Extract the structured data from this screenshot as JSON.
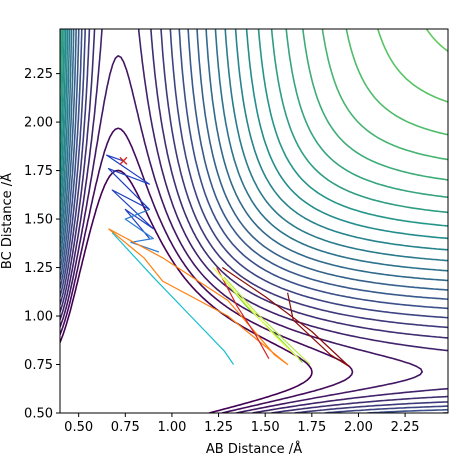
{
  "chart_data": {
    "type": "contour",
    "title": "",
    "xlabel": "AB Distance /Å",
    "ylabel": "BC Distance /Å",
    "xlim": [
      0.4,
      2.48
    ],
    "ylim": [
      0.5,
      2.48
    ],
    "xticks": [
      "0.50",
      "0.75",
      "1.00",
      "1.25",
      "1.50",
      "1.75",
      "2.00",
      "2.25"
    ],
    "yticks": [
      "0.50",
      "0.75",
      "1.00",
      "1.25",
      "1.50",
      "1.75",
      "2.00",
      "2.25"
    ],
    "grid": false,
    "colormap": [
      "#440154",
      "#3b528b",
      "#21918c",
      "#5ec962",
      "#fde725"
    ],
    "start_marker": {
      "x": 0.74,
      "y": 1.8,
      "symbol": "x",
      "color": "#d62728"
    },
    "series": [
      {
        "color": "#1f3fbf",
        "points": [
          [
            0.74,
            1.8
          ],
          [
            0.65,
            1.83
          ],
          [
            0.88,
            1.68
          ],
          [
            0.66,
            1.76
          ],
          [
            0.88,
            1.55
          ],
          [
            0.68,
            1.65
          ],
          [
            0.9,
            1.45
          ],
          [
            0.75,
            1.55
          ],
          [
            0.88,
            1.4
          ]
        ]
      },
      {
        "color": "#2b7bd6",
        "points": [
          [
            0.88,
            1.55
          ],
          [
            0.75,
            1.5
          ],
          [
            0.9,
            1.4
          ],
          [
            0.78,
            1.38
          ],
          [
            0.93,
            1.33
          ]
        ]
      },
      {
        "color": "#ff7f0e",
        "points": [
          [
            0.66,
            1.45
          ],
          [
            0.95,
            1.3
          ],
          [
            1.3,
            1.08
          ],
          [
            1.55,
            0.8
          ],
          [
            1.62,
            0.75
          ],
          [
            1.3,
            1.0
          ],
          [
            0.95,
            1.18
          ],
          [
            0.85,
            1.3
          ],
          [
            0.66,
            1.45
          ]
        ]
      },
      {
        "color": "#17becf",
        "points": [
          [
            0.68,
            1.43
          ],
          [
            0.9,
            1.2
          ],
          [
            1.1,
            1.0
          ],
          [
            1.28,
            0.82
          ],
          [
            1.33,
            0.75
          ]
        ]
      },
      {
        "color": "#d62728",
        "points": [
          [
            1.24,
            1.25
          ],
          [
            1.35,
            1.05
          ],
          [
            1.45,
            0.9
          ],
          [
            1.52,
            0.78
          ]
        ]
      },
      {
        "color": "#8c0a0a",
        "points": [
          [
            1.27,
            1.25
          ],
          [
            1.5,
            1.1
          ],
          [
            1.75,
            0.92
          ],
          [
            1.95,
            0.74
          ],
          [
            1.85,
            0.8
          ],
          [
            1.65,
            0.98
          ],
          [
            1.62,
            1.12
          ]
        ]
      },
      {
        "color": "#7fd63a",
        "points": [
          [
            1.25,
            1.22
          ],
          [
            1.4,
            1.05
          ],
          [
            1.58,
            0.88
          ],
          [
            1.7,
            0.76
          ]
        ]
      },
      {
        "color": "#b8e84b",
        "points": [
          [
            1.28,
            1.2
          ],
          [
            1.45,
            1.02
          ],
          [
            1.62,
            0.86
          ],
          [
            1.74,
            0.75
          ]
        ]
      },
      {
        "color": "#e6ff4d",
        "points": [
          [
            1.22,
            1.25
          ],
          [
            1.38,
            1.08
          ],
          [
            1.55,
            0.9
          ],
          [
            1.68,
            0.78
          ]
        ]
      }
    ]
  }
}
